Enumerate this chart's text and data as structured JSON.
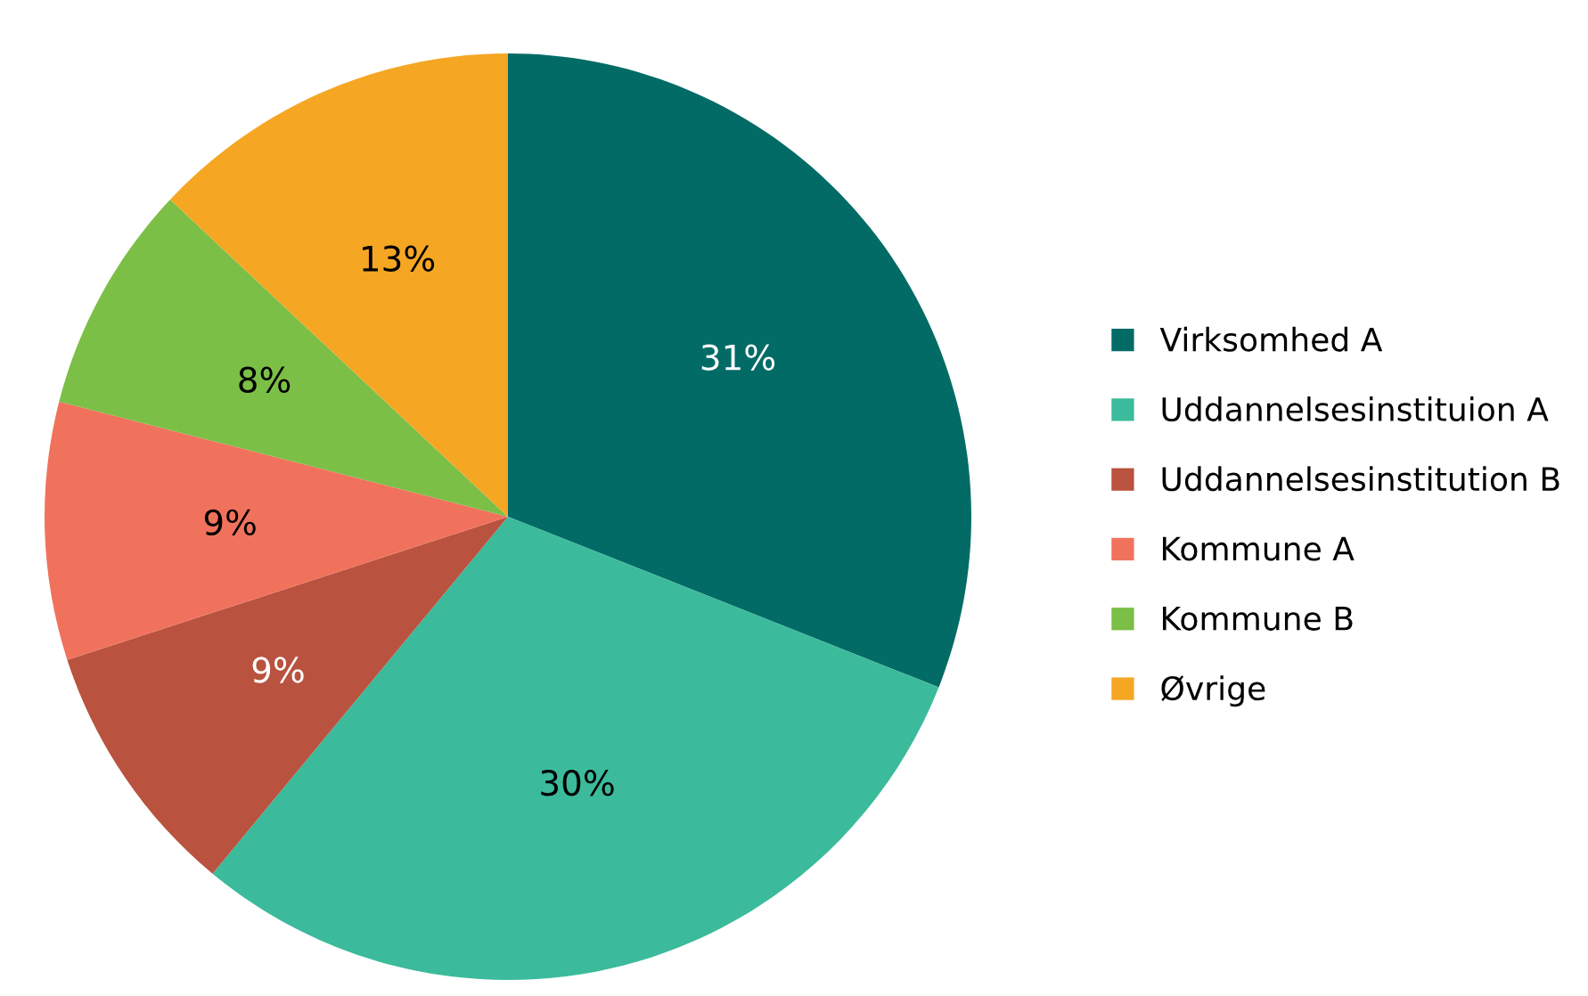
{
  "chart_data": {
    "type": "pie",
    "categories": [
      "Virksomhed A",
      "Uddannelsesinstituion A",
      "Uddannelsesinstitution B",
      "Kommune A",
      "Kommune B",
      "Øvrige"
    ],
    "values": [
      31,
      30,
      9,
      9,
      8,
      13
    ],
    "colors": [
      "#036b66",
      "#3bbb9b",
      "#b9523f",
      "#f1725c",
      "#7bbf47",
      "#f5a623"
    ],
    "value_labels": [
      "31%",
      "30%",
      "9%",
      "9%",
      "8%",
      "13%"
    ],
    "legend": "right"
  }
}
